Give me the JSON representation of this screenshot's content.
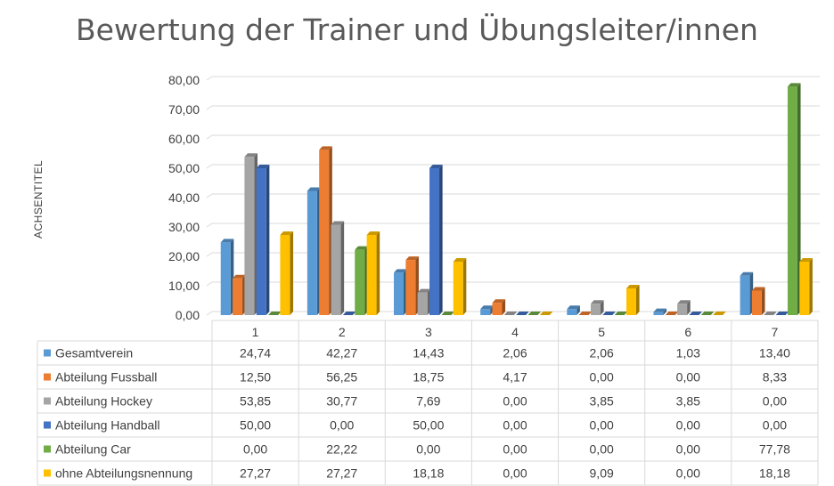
{
  "chart_data": {
    "type": "bar",
    "title": "Bewertung der Trainer und Übungsleiter/innen",
    "ylabel": "ACHSENTITEL",
    "xlabel": "",
    "ylim": [
      0,
      80
    ],
    "yticks": [
      "0,00",
      "10,00",
      "20,00",
      "30,00",
      "40,00",
      "50,00",
      "60,00",
      "70,00",
      "80,00"
    ],
    "categories": [
      "1",
      "2",
      "3",
      "4",
      "5",
      "6",
      "7"
    ],
    "legend_placement": "data-table",
    "grid": true,
    "series": [
      {
        "name": "Gesamtverein",
        "color": "#5B9BD5",
        "values": [
          24.74,
          42.27,
          14.43,
          2.06,
          2.06,
          1.03,
          13.4
        ],
        "labels": [
          "24,74",
          "42,27",
          "14,43",
          "2,06",
          "2,06",
          "1,03",
          "13,40"
        ]
      },
      {
        "name": "Abteilung Fussball",
        "color": "#ED7D31",
        "values": [
          12.5,
          56.25,
          18.75,
          4.17,
          0.0,
          0.0,
          8.33
        ],
        "labels": [
          "12,50",
          "56,25",
          "18,75",
          "4,17",
          "0,00",
          "0,00",
          "8,33"
        ]
      },
      {
        "name": "Abteilung Hockey",
        "color": "#A5A5A5",
        "values": [
          53.85,
          30.77,
          7.69,
          0.0,
          3.85,
          3.85,
          0.0
        ],
        "labels": [
          "53,85",
          "30,77",
          "7,69",
          "0,00",
          "3,85",
          "3,85",
          "0,00"
        ]
      },
      {
        "name": "Abteilung Handball",
        "color": "#4472C4",
        "values": [
          50.0,
          0.0,
          50.0,
          0.0,
          0.0,
          0.0,
          0.0
        ],
        "labels": [
          "50,00",
          "0,00",
          "50,00",
          "0,00",
          "0,00",
          "0,00",
          "0,00"
        ]
      },
      {
        "name": "Abteilung Car",
        "color": "#70AD47",
        "values": [
          0.0,
          22.22,
          0.0,
          0.0,
          0.0,
          0.0,
          77.78
        ],
        "labels": [
          "0,00",
          "22,22",
          "0,00",
          "0,00",
          "0,00",
          "0,00",
          "77,78"
        ]
      },
      {
        "name": "ohne Abteilungsnennung",
        "color": "#FFC000",
        "values": [
          27.27,
          27.27,
          18.18,
          0.0,
          9.09,
          0.0,
          18.18
        ],
        "labels": [
          "27,27",
          "27,27",
          "18,18",
          "0,00",
          "9,09",
          "0,00",
          "18,18"
        ]
      }
    ]
  }
}
